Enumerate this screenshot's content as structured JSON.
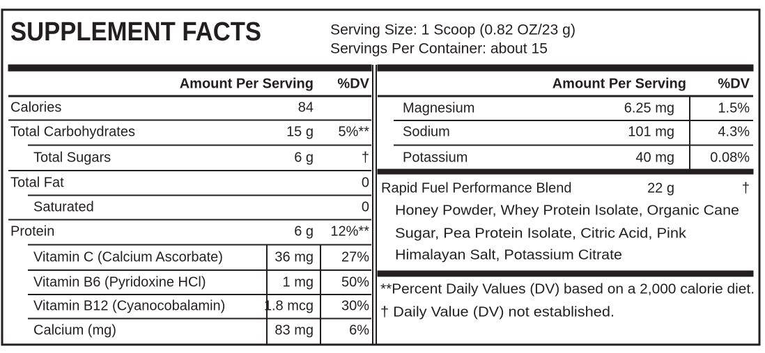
{
  "header": {
    "title": "SUPPLEMENT FACTS",
    "serving_size": "Serving Size: 1 Scoop (0.82 OZ/23 g)",
    "servings_per_container": "Servings Per Container: about 15"
  },
  "left": {
    "columns": [
      "Amount Per Serving",
      "%DV"
    ],
    "rows": [
      {
        "name": "Calories",
        "amount": "84"
      },
      {
        "name": "Total Carbohydrates",
        "amount": "15 g",
        "dv": "5%**"
      },
      {
        "name": "Total Sugars",
        "amount": "6 g",
        "dv": "†"
      },
      {
        "name": "Total Fat",
        "dv": "0"
      },
      {
        "name": "Saturated",
        "dv": "0"
      },
      {
        "name": "Protein",
        "amount": "6 g",
        "dv": "12%**"
      },
      {
        "name": "Vitamin C (Calcium Ascorbate)",
        "amount": "36 mg",
        "dv": "27%"
      },
      {
        "name": "Vitamin B6 (Pyridoxine HCl)",
        "amount": "1 mg",
        "dv": "50%"
      },
      {
        "name": "Vitamin B12 (Cyanocobalamin)",
        "amount": "1.8 mcg",
        "dv": "30%"
      },
      {
        "name": "Calcium (mg)",
        "amount": "83 mg",
        "dv": "6%"
      }
    ]
  },
  "right": {
    "columns": [
      "Amount Per Serving",
      "%DV"
    ],
    "rows": [
      {
        "name": "Magnesium",
        "amount": "6.25 mg",
        "dv": "1.5%"
      },
      {
        "name": "Sodium",
        "amount": "101 mg",
        "dv": "4.3%"
      },
      {
        "name": "Potassium",
        "amount": "40 mg",
        "dv": "0.08%"
      }
    ]
  },
  "blend": {
    "name": "Rapid Fuel Performance Blend",
    "amount": "22 g",
    "dv": "†",
    "ingredients": [
      "Honey Powder, Whey Protein Isolate, Organic Cane",
      "Sugar, Pea Protein Isolate, Citric Acid, Pink",
      "Himalayan Salt, Potassium Citrate"
    ]
  },
  "footnotes": [
    "**Percent Daily Values (DV) based on a 2,000 calorie diet.",
    "† Daily Value (DV) not established."
  ]
}
